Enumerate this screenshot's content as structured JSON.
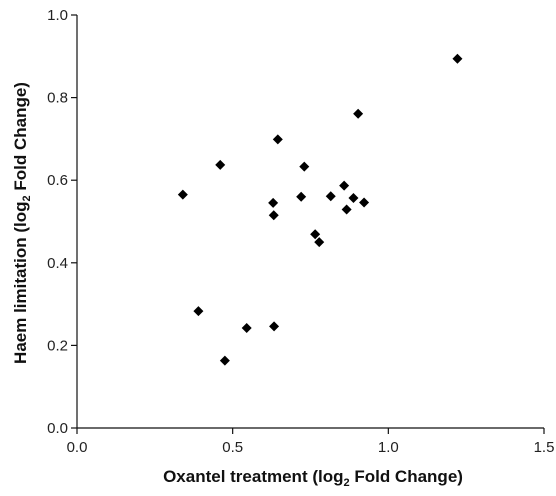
{
  "chart_data": {
    "type": "scatter",
    "title": "",
    "xlabel": {
      "prefix": "Oxantel treatment (log",
      "subscript": "2",
      "suffix": " Fold Change)"
    },
    "ylabel": {
      "prefix": "Haem limitation (log",
      "subscript": "2",
      "suffix": " Fold Change)"
    },
    "xlim": [
      0.0,
      1.5
    ],
    "ylim": [
      0.0,
      1.0
    ],
    "x_ticks": [
      "0.0",
      "0.5",
      "1.0",
      "1.5"
    ],
    "y_ticks": [
      "0.0",
      "0.2",
      "0.4",
      "0.6",
      "0.8",
      "1.0"
    ],
    "grid": false,
    "legend": "none",
    "marker": "diamond",
    "marker_color": "#000000",
    "points": [
      {
        "x": 0.34,
        "y": 0.565
      },
      {
        "x": 0.39,
        "y": 0.283
      },
      {
        "x": 0.46,
        "y": 0.637
      },
      {
        "x": 0.475,
        "y": 0.163
      },
      {
        "x": 0.545,
        "y": 0.242
      },
      {
        "x": 0.63,
        "y": 0.545
      },
      {
        "x": 0.632,
        "y": 0.515
      },
      {
        "x": 0.633,
        "y": 0.246
      },
      {
        "x": 0.645,
        "y": 0.699
      },
      {
        "x": 0.72,
        "y": 0.56
      },
      {
        "x": 0.73,
        "y": 0.633
      },
      {
        "x": 0.765,
        "y": 0.469
      },
      {
        "x": 0.778,
        "y": 0.45
      },
      {
        "x": 0.815,
        "y": 0.561
      },
      {
        "x": 0.858,
        "y": 0.587
      },
      {
        "x": 0.866,
        "y": 0.529
      },
      {
        "x": 0.888,
        "y": 0.557
      },
      {
        "x": 0.903,
        "y": 0.761
      },
      {
        "x": 0.922,
        "y": 0.546
      },
      {
        "x": 1.222,
        "y": 0.894
      }
    ]
  }
}
